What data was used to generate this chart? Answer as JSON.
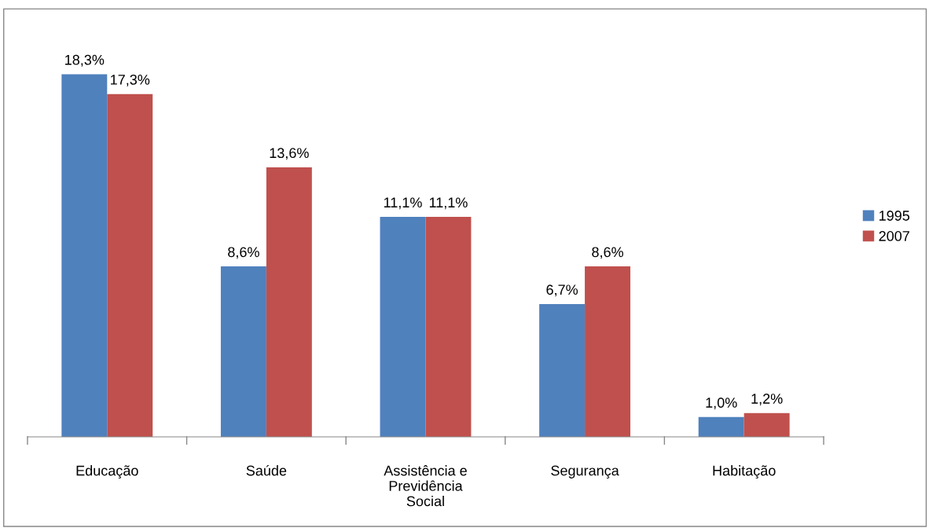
{
  "chart_data": {
    "type": "bar",
    "categories": [
      "Educação",
      "Saúde",
      "Assistência e Previdência Social",
      "Segurança",
      "Habitação"
    ],
    "series": [
      {
        "name": "1995",
        "color": "#4f81bd",
        "values": [
          18.3,
          8.6,
          11.1,
          6.7,
          1.0
        ],
        "value_labels": [
          "18,3%",
          "8,6%",
          "11,1%",
          "6,7%",
          "1,0%"
        ]
      },
      {
        "name": "2007",
        "color": "#c0504d",
        "values": [
          17.3,
          13.6,
          11.1,
          8.6,
          1.2
        ],
        "value_labels": [
          "17,3%",
          "13,6%",
          "11,1%",
          "8,6%",
          "1,2%"
        ]
      }
    ],
    "legend": "right",
    "grid": false
  }
}
